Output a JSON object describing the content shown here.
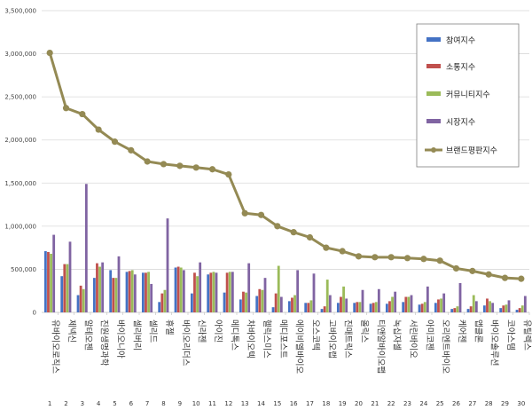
{
  "chart_data": {
    "type": "bar",
    "title": "",
    "xlabel": "",
    "ylabel": "",
    "ylim": [
      0,
      3500000
    ],
    "yticks": [
      0,
      500000,
      1000000,
      1500000,
      2000000,
      2500000,
      3000000,
      3500000
    ],
    "ytick_labels": [
      "0",
      "500,000",
      "1,000,000",
      "1,500,000",
      "2,000,000",
      "2,500,000",
      "3,000,000",
      "3,500,000"
    ],
    "grid": true,
    "legend_position": "top-right",
    "categories": [
      "유바이오로직스",
      "제넥신",
      "알테오젠",
      "진원생명과학",
      "바이오니아",
      "셀리버리",
      "셀리드",
      "휴젤",
      "바이오리더스",
      "신라젠",
      "아이진",
      "메디톡스",
      "차바이오텍",
      "헬릭스미스",
      "메디포스트",
      "에이비엘바이오",
      "오스코텍",
      "고바이오랩",
      "진매트릭스",
      "올릭스",
      "티앤알바이오팹",
      "녹십자셀",
      "서린바이오",
      "아미코젠",
      "오리엔트바이오",
      "케어젠",
      "앱클론",
      "바이오솔루션",
      "코아스템",
      "유틸렉스"
    ],
    "ranks": [
      "1",
      "2",
      "3",
      "4",
      "5",
      "6",
      "7",
      "8",
      "9",
      "10",
      "11",
      "12",
      "13",
      "14",
      "15",
      "16",
      "17",
      "18",
      "19",
      "20",
      "21",
      "22",
      "23",
      "24",
      "25",
      "26",
      "27",
      "28",
      "29",
      "30"
    ],
    "series": [
      {
        "name": "참여지수",
        "color": "#4472c4",
        "type": "bar",
        "values": [
          710000,
          420000,
          200000,
          400000,
          490000,
          470000,
          460000,
          120000,
          520000,
          220000,
          440000,
          230000,
          150000,
          190000,
          60000,
          130000,
          110000,
          40000,
          110000,
          110000,
          100000,
          100000,
          120000,
          90000,
          110000,
          40000,
          40000,
          80000,
          50000,
          30000
        ]
      },
      {
        "name": "소통지수",
        "color": "#c0504d",
        "type": "bar",
        "values": [
          700000,
          560000,
          310000,
          570000,
          400000,
          480000,
          460000,
          220000,
          530000,
          460000,
          460000,
          460000,
          240000,
          270000,
          220000,
          170000,
          110000,
          70000,
          180000,
          120000,
          110000,
          130000,
          180000,
          100000,
          150000,
          50000,
          70000,
          160000,
          80000,
          50000
        ]
      },
      {
        "name": "커뮤니티지수",
        "color": "#9bbb59",
        "type": "bar",
        "values": [
          680000,
          560000,
          270000,
          530000,
          400000,
          490000,
          470000,
          260000,
          520000,
          420000,
          470000,
          470000,
          230000,
          260000,
          540000,
          200000,
          140000,
          380000,
          300000,
          120000,
          120000,
          180000,
          180000,
          120000,
          160000,
          70000,
          200000,
          130000,
          90000,
          80000
        ]
      },
      {
        "name": "시장지수",
        "color": "#8064a2",
        "type": "bar",
        "values": [
          900000,
          820000,
          1490000,
          580000,
          650000,
          440000,
          330000,
          1090000,
          490000,
          580000,
          460000,
          470000,
          570000,
          400000,
          180000,
          490000,
          450000,
          200000,
          160000,
          260000,
          270000,
          240000,
          200000,
          300000,
          220000,
          340000,
          130000,
          110000,
          140000,
          190000
        ]
      },
      {
        "name": "브랜드평판지수",
        "color": "#948a54",
        "type": "line",
        "values": [
          3010000,
          2370000,
          2300000,
          2120000,
          1980000,
          1880000,
          1750000,
          1720000,
          1700000,
          1680000,
          1660000,
          1600000,
          1150000,
          1130000,
          1000000,
          930000,
          870000,
          750000,
          710000,
          650000,
          640000,
          640000,
          630000,
          620000,
          600000,
          510000,
          480000,
          440000,
          400000,
          390000
        ]
      }
    ]
  }
}
